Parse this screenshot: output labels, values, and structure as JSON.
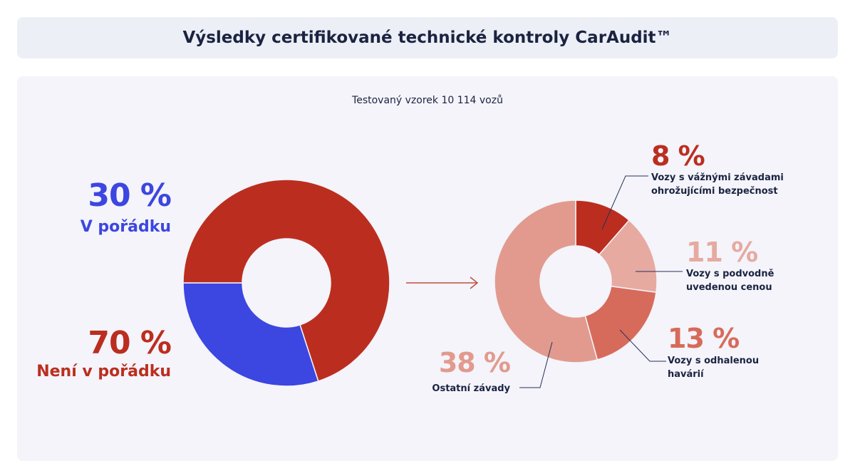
{
  "header": {
    "title": "Výsledky certifikované technické kontroly CarAudit™"
  },
  "chart_data": [
    {
      "type": "pie",
      "variant": "donut",
      "title": "Testovaný vzorek 10 114 vozů",
      "slices": [
        {
          "label": "V pořádku",
          "value": 30,
          "value_label": "30 %",
          "color": "#3c46e0"
        },
        {
          "label": "Není v pořádku",
          "value": 70,
          "value_label": "70 %",
          "color": "#bb2e1f"
        }
      ]
    },
    {
      "type": "pie",
      "variant": "donut",
      "breakdown_of": "Není v pořádku",
      "slices": [
        {
          "label": "Vozy s vážnými závadami ohrožujícími bezpečnost",
          "lines": [
            "Vozy s vážnými závadami",
            "ohrožujícími bezpečnost"
          ],
          "value": 8,
          "value_label": "8 %",
          "color": "#bb2e1f"
        },
        {
          "label": "Vozy s podvodně uvedenou cenou",
          "lines": [
            "Vozy s podvodně",
            "uvedenou cenou"
          ],
          "value": 11,
          "value_label": "11 %",
          "color": "#e6aaa1"
        },
        {
          "label": "Vozy s odhalenou havárií",
          "lines": [
            "Vozy s odhalenou",
            "havárií"
          ],
          "value": 13,
          "value_label": "13 %",
          "color": "#d76b5b"
        },
        {
          "label": "Ostatní závady",
          "lines": [
            "Ostatní závady"
          ],
          "value": 38,
          "value_label": "38 %",
          "color": "#e29a8e"
        }
      ]
    }
  ]
}
